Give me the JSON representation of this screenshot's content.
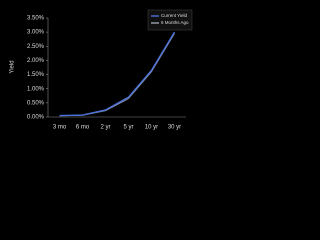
{
  "chart_data": {
    "type": "line",
    "y_label": "Yield",
    "categories": [
      "3 mo",
      "6 mo",
      "2 yr",
      "5 yr",
      "10 yr",
      "30 yr"
    ],
    "series": [
      {
        "name": "Current Yield",
        "color": "#4a6fd8",
        "values": [
          0.05,
          0.07,
          0.25,
          0.7,
          1.65,
          3.0
        ]
      },
      {
        "name": "6 Months Ago",
        "color": "#9aa0b0",
        "values": [
          0.04,
          0.06,
          0.22,
          0.65,
          1.6,
          2.95
        ]
      }
    ],
    "ylim": [
      0,
      3.5
    ],
    "yticks": [
      {
        "value": 0,
        "label": "0.00%"
      },
      {
        "value": 0.5,
        "label": "0.50%"
      },
      {
        "value": 1,
        "label": "1.00%"
      },
      {
        "value": 1.5,
        "label": "1.50%"
      },
      {
        "value": 2,
        "label": "2.00%"
      },
      {
        "value": 2.5,
        "label": "2.50%"
      },
      {
        "value": 3,
        "label": "3.00%"
      },
      {
        "value": 3.5,
        "label": "3.50%"
      }
    ],
    "grid": false,
    "legend": "top-right"
  }
}
